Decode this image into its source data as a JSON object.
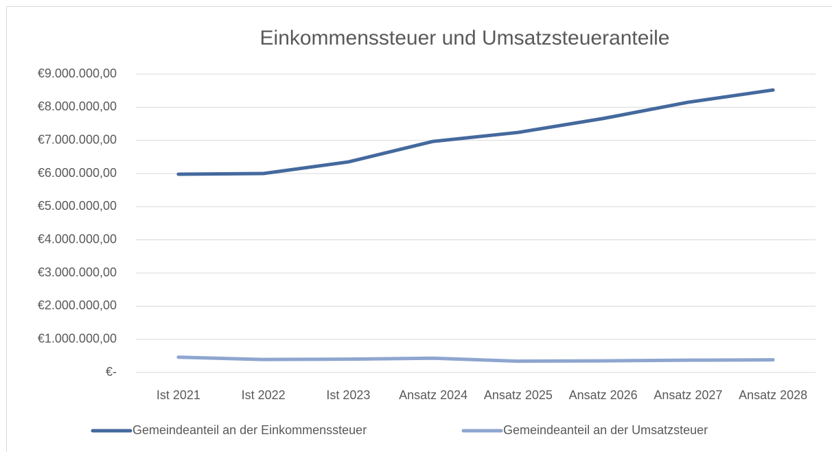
{
  "chart_data": {
    "type": "line",
    "title": "Einkommenssteuer und Umsatzsteueranteile",
    "categories": [
      "Ist 2021",
      "Ist 2022",
      "Ist 2023",
      "Ansatz 2024",
      "Ansatz 2025",
      "Ansatz 2026",
      "Ansatz 2027",
      "Ansatz 2028"
    ],
    "series": [
      {
        "name": "Gemeindeanteil an der Einkommenssteuer",
        "color": "#44699d",
        "values": [
          5980000,
          6000000,
          6350000,
          6970000,
          7240000,
          7660000,
          8150000,
          8520000
        ]
      },
      {
        "name": "Gemeindeanteil an der Umsatzsteuer",
        "color": "#8ea6cf",
        "values": [
          460000,
          390000,
          400000,
          430000,
          340000,
          350000,
          370000,
          380000
        ]
      }
    ],
    "ylim": [
      0,
      9000000
    ],
    "yticks": [
      {
        "value": 0,
        "label": "€-"
      },
      {
        "value": 1000000,
        "label": "€1.000.000,00"
      },
      {
        "value": 2000000,
        "label": "€2.000.000,00"
      },
      {
        "value": 3000000,
        "label": "€3.000.000,00"
      },
      {
        "value": 4000000,
        "label": "€4.000.000,00"
      },
      {
        "value": 5000000,
        "label": "€5.000.000,00"
      },
      {
        "value": 6000000,
        "label": "€6.000.000,00"
      },
      {
        "value": 7000000,
        "label": "€7.000.000,00"
      },
      {
        "value": 8000000,
        "label": "€8.000.000,00"
      },
      {
        "value": 9000000,
        "label": "€9.000.000,00"
      }
    ],
    "grid": true,
    "legend": "bottom"
  }
}
